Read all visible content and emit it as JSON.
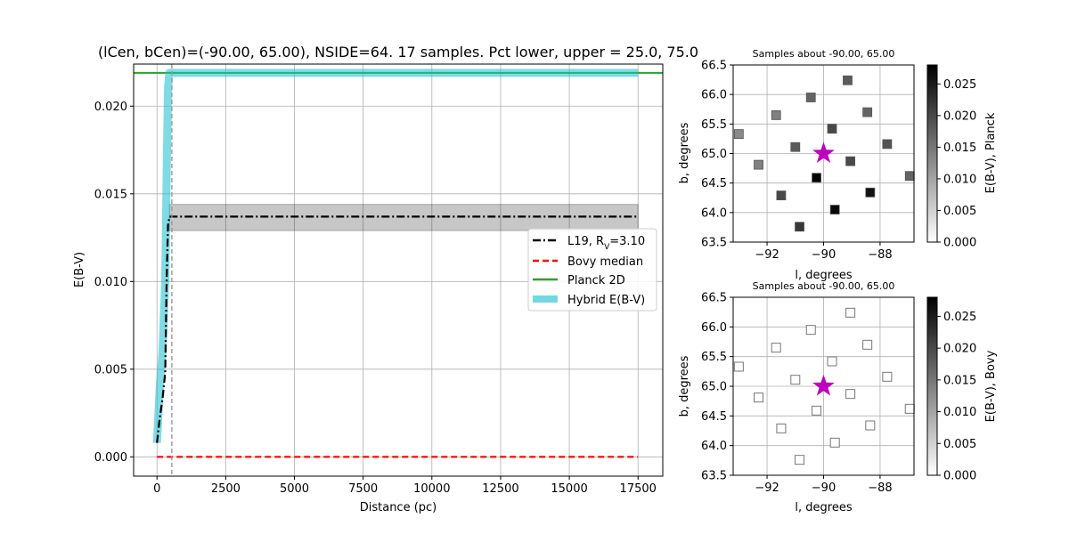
{
  "chart_data": [
    {
      "type": "line",
      "title": "(lCen, bCen)=(-90.00, 65.00), NSIDE=64. 17 samples. Pct lower, upper = 25.0, 75.0",
      "xlabel": "Distance (pc)",
      "ylabel": "E(B-V)",
      "xlim": [
        -850,
        18400
      ],
      "ylim": [
        -0.0011,
        0.0224
      ],
      "xticks": [
        "0",
        "2500",
        "5000",
        "7500",
        "10000",
        "12500",
        "15000",
        "17500"
      ],
      "xtick_values": [
        0,
        2500,
        5000,
        7500,
        10000,
        12500,
        15000,
        17500
      ],
      "yticks": [
        "0.000",
        "0.005",
        "0.010",
        "0.015",
        "0.020"
      ],
      "ytick_values": [
        0,
        0.005,
        0.01,
        0.015,
        0.02
      ],
      "grid": true,
      "legend_position": "center-right",
      "vline_x": 540,
      "series": [
        {
          "name": "L19, R$_V$=3.10",
          "legend_label": "L19, R",
          "legend_sub": "V",
          "legend_tail": "=3.10",
          "color": "#000000",
          "style": "dashdot",
          "x": [
            0,
            100,
            200,
            300,
            350,
            400,
            450,
            500,
            17500
          ],
          "y": [
            0.0008,
            0.0022,
            0.0033,
            0.0048,
            0.01,
            0.0132,
            0.0137,
            0.0137,
            0.0137
          ],
          "band_lower": [
            null,
            null,
            null,
            null,
            null,
            null,
            0.0129,
            0.0129,
            0.0129
          ],
          "band_upper": [
            null,
            null,
            null,
            null,
            null,
            null,
            0.0144,
            0.0144,
            0.0144
          ]
        },
        {
          "name": "Bovy median",
          "color": "#ff0000",
          "style": "dashed",
          "x": [
            0,
            17500
          ],
          "y": [
            0.0,
            0.0
          ]
        },
        {
          "name": "Planck 2D",
          "color": "#2ca02c",
          "style": "solid",
          "hline": 0.0219
        },
        {
          "name": "Hybrid E(B-V)",
          "color": "#17becf",
          "style": "thick",
          "x": [
            0,
            100,
            200,
            300,
            350,
            400,
            450,
            17500
          ],
          "y": [
            0.0008,
            0.004,
            0.006,
            0.01,
            0.016,
            0.021,
            0.0219,
            0.0219
          ]
        }
      ]
    },
    {
      "type": "scatter",
      "title": "Samples about -90.00, 65.00",
      "xlabel": "l, degrees",
      "ylabel": "b, degrees",
      "xlim": [
        -93.2,
        -86.8
      ],
      "ylim": [
        63.5,
        66.5
      ],
      "xticks": [
        "−92",
        "−90",
        "−88"
      ],
      "xtick_values": [
        -92,
        -90,
        -88
      ],
      "yticks": [
        "63.5",
        "64.0",
        "64.5",
        "65.0",
        "65.5",
        "66.0",
        "66.5"
      ],
      "ytick_values": [
        63.5,
        64.0,
        64.5,
        65.0,
        65.5,
        66.0,
        66.5
      ],
      "grid": true,
      "marker": "filled-square",
      "center_marker": "star",
      "center_color": "#bf00bf",
      "center": [
        -90.0,
        65.0
      ],
      "points": [
        {
          "l": -89.15,
          "b": 66.24,
          "v": 0.018
        },
        {
          "l": -90.45,
          "b": 65.95,
          "v": 0.017
        },
        {
          "l": -91.68,
          "b": 65.65,
          "v": 0.014
        },
        {
          "l": -88.45,
          "b": 65.7,
          "v": 0.017
        },
        {
          "l": -93.0,
          "b": 65.33,
          "v": 0.013
        },
        {
          "l": -89.7,
          "b": 65.42,
          "v": 0.02
        },
        {
          "l": -91.0,
          "b": 65.11,
          "v": 0.018
        },
        {
          "l": -87.75,
          "b": 65.16,
          "v": 0.019
        },
        {
          "l": -92.3,
          "b": 64.81,
          "v": 0.014
        },
        {
          "l": -89.05,
          "b": 64.87,
          "v": 0.02
        },
        {
          "l": -86.95,
          "b": 64.62,
          "v": 0.017
        },
        {
          "l": -90.25,
          "b": 64.59,
          "v": 0.028
        },
        {
          "l": -91.5,
          "b": 64.29,
          "v": 0.02
        },
        {
          "l": -88.35,
          "b": 64.34,
          "v": 0.026
        },
        {
          "l": -89.6,
          "b": 64.05,
          "v": 0.027
        },
        {
          "l": -90.85,
          "b": 63.76,
          "v": 0.022
        }
      ],
      "colorbar": {
        "label": "E(B-V), Planck",
        "range": [
          0.0,
          0.028
        ],
        "ticks": [
          "0.000",
          "0.005",
          "0.010",
          "0.015",
          "0.020",
          "0.025"
        ],
        "tick_values": [
          0.0,
          0.005,
          0.01,
          0.015,
          0.02,
          0.025
        ]
      }
    },
    {
      "type": "scatter",
      "title": "Samples about -90.00, 65.00",
      "xlabel": "l, degrees",
      "ylabel": "b, degrees",
      "xlim": [
        -93.2,
        -86.8
      ],
      "ylim": [
        63.5,
        66.5
      ],
      "xticks": [
        "−92",
        "−90",
        "−88"
      ],
      "xtick_values": [
        -92,
        -90,
        -88
      ],
      "yticks": [
        "63.5",
        "64.0",
        "64.5",
        "65.0",
        "65.5",
        "66.0",
        "66.5"
      ],
      "ytick_values": [
        63.5,
        64.0,
        64.5,
        65.0,
        65.5,
        66.0,
        66.5
      ],
      "grid": true,
      "marker": "open-square",
      "center_marker": "star",
      "center_color": "#bf00bf",
      "center": [
        -90.0,
        65.0
      ],
      "points": [
        {
          "l": -89.05,
          "b": 66.24,
          "v": 0.0
        },
        {
          "l": -90.45,
          "b": 65.95,
          "v": 0.0
        },
        {
          "l": -91.68,
          "b": 65.65,
          "v": 0.0
        },
        {
          "l": -88.45,
          "b": 65.7,
          "v": 0.0
        },
        {
          "l": -93.0,
          "b": 65.33,
          "v": 0.0
        },
        {
          "l": -89.7,
          "b": 65.42,
          "v": 0.0
        },
        {
          "l": -91.0,
          "b": 65.11,
          "v": 0.0
        },
        {
          "l": -87.75,
          "b": 65.16,
          "v": 0.0
        },
        {
          "l": -92.3,
          "b": 64.81,
          "v": 0.0
        },
        {
          "l": -89.05,
          "b": 64.87,
          "v": 0.0
        },
        {
          "l": -86.95,
          "b": 64.62,
          "v": 0.0
        },
        {
          "l": -90.25,
          "b": 64.59,
          "v": 0.0
        },
        {
          "l": -91.5,
          "b": 64.29,
          "v": 0.0
        },
        {
          "l": -88.35,
          "b": 64.34,
          "v": 0.0
        },
        {
          "l": -89.6,
          "b": 64.05,
          "v": 0.0
        },
        {
          "l": -90.85,
          "b": 63.76,
          "v": 0.0
        }
      ],
      "colorbar": {
        "label": "E(B-V), Bovy",
        "range": [
          0.0,
          0.028
        ],
        "ticks": [
          "0.000",
          "0.005",
          "0.010",
          "0.015",
          "0.020",
          "0.025"
        ],
        "tick_values": [
          0.0,
          0.005,
          0.01,
          0.015,
          0.02,
          0.025
        ]
      }
    }
  ]
}
